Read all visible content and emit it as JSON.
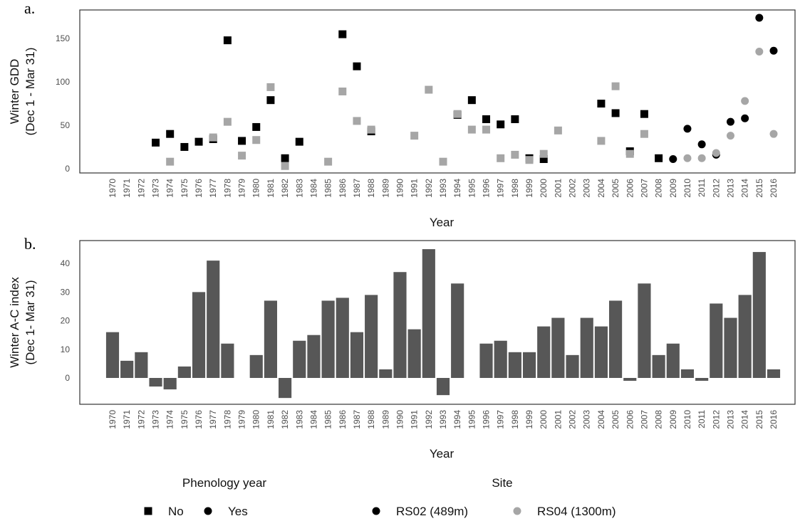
{
  "chart_data": [
    {
      "type": "scatter",
      "panel_label": "a.",
      "xlabel": "Year",
      "ylabel": [
        "Winter GDD",
        "(Dec 1 - Mar 31)"
      ],
      "categories": [
        "1970",
        "1971",
        "1972",
        "1973",
        "1974",
        "1975",
        "1976",
        "1977",
        "1978",
        "1979",
        "1980",
        "1981",
        "1982",
        "1983",
        "1984",
        "1985",
        "1986",
        "1987",
        "1988",
        "1989",
        "1990",
        "1991",
        "1992",
        "1993",
        "1994",
        "1995",
        "1996",
        "1997",
        "1998",
        "1999",
        "2000",
        "2001",
        "2002",
        "2003",
        "2004",
        "2005",
        "2006",
        "2007",
        "2008",
        "2009",
        "2010",
        "2011",
        "2012",
        "2013",
        "2014",
        "2015",
        "2016"
      ],
      "phenology_year": [
        "No",
        "No",
        "No",
        "No",
        "No",
        "No",
        "No",
        "No",
        "No",
        "No",
        "No",
        "No",
        "No",
        "No",
        "No",
        "No",
        "No",
        "No",
        "No",
        "No",
        "No",
        "No",
        "No",
        "No",
        "No",
        "No",
        "No",
        "No",
        "No",
        "No",
        "No",
        "No",
        "No",
        "No",
        "No",
        "No",
        "No",
        "No",
        "No",
        "Yes",
        "Yes",
        "Yes",
        "Yes",
        "Yes",
        "Yes",
        "Yes",
        "Yes"
      ],
      "series": [
        {
          "name": "RS02 (489m)",
          "color": "#000000",
          "values": [
            null,
            null,
            null,
            30,
            40,
            25,
            31,
            34,
            148,
            32,
            48,
            79,
            12,
            31,
            null,
            null,
            155,
            118,
            43,
            null,
            null,
            null,
            null,
            null,
            62,
            79,
            57,
            51,
            57,
            12,
            11,
            null,
            null,
            null,
            75,
            64,
            20,
            63,
            12,
            11,
            46,
            28,
            16,
            54,
            58,
            174,
            136
          ]
        },
        {
          "name": "RS04 (1300m)",
          "color": "#a6a6a6",
          "values": [
            null,
            null,
            null,
            null,
            8,
            null,
            null,
            36,
            54,
            15,
            33,
            94,
            3,
            null,
            null,
            8,
            89,
            55,
            45,
            null,
            null,
            38,
            91,
            8,
            63,
            45,
            45,
            12,
            16,
            10,
            17,
            44,
            null,
            null,
            32,
            95,
            17,
            40,
            null,
            null,
            12,
            12,
            18,
            38,
            78,
            135,
            40
          ]
        }
      ],
      "ylim": [
        -5,
        183
      ],
      "yticks": [
        0,
        50,
        100,
        150
      ]
    },
    {
      "type": "bar",
      "panel_label": "b.",
      "xlabel": "Year",
      "ylabel": [
        "Winter A-C index",
        "(Dec 1- Mar 31)"
      ],
      "categories": [
        "1970",
        "1971",
        "1972",
        "1973",
        "1974",
        "1975",
        "1976",
        "1977",
        "1978",
        "1979",
        "1980",
        "1981",
        "1982",
        "1983",
        "1984",
        "1985",
        "1986",
        "1987",
        "1988",
        "1989",
        "1990",
        "1991",
        "1992",
        "1993",
        "1994",
        "1995",
        "1996",
        "1997",
        "1998",
        "1999",
        "2000",
        "2001",
        "2002",
        "2003",
        "2004",
        "2005",
        "2006",
        "2007",
        "2008",
        "2009",
        "2010",
        "2011",
        "2012",
        "2013",
        "2014",
        "2015",
        "2016"
      ],
      "values": [
        16,
        6,
        9,
        -3,
        -4,
        4,
        30,
        41,
        12,
        null,
        8,
        27,
        -7,
        13,
        15,
        27,
        28,
        16,
        29,
        3,
        37,
        17,
        45,
        -6,
        33,
        null,
        12,
        13,
        9,
        9,
        18,
        21,
        8,
        21,
        18,
        27,
        -1,
        33,
        8,
        12,
        3,
        -1,
        26,
        21,
        29,
        44,
        3
      ],
      "color": "#575757",
      "ylim": [
        -9.2,
        48
      ],
      "yticks": [
        0,
        10,
        20,
        30,
        40
      ]
    }
  ],
  "legend": {
    "shape_title": "Phenology year",
    "shapes": [
      "No",
      "Yes"
    ],
    "color_title": "Site"
  }
}
